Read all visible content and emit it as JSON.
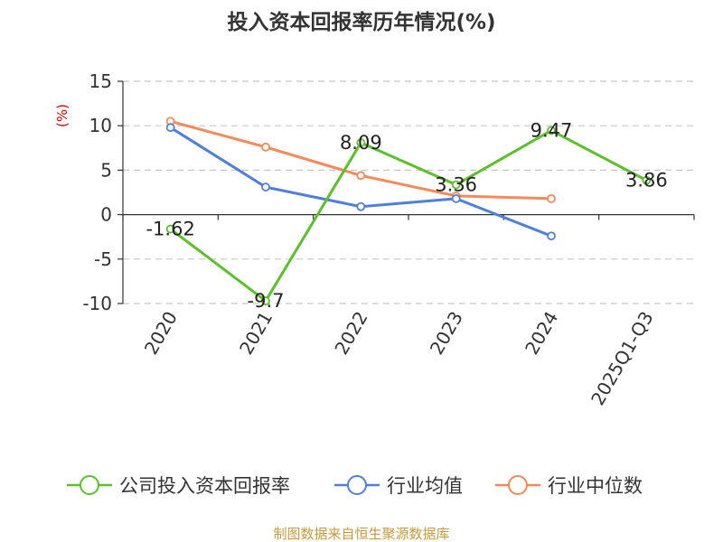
{
  "chart_data": {
    "type": "line",
    "title": "投入资本回报率历年情况(%)",
    "ylabel": "(%)",
    "categories": [
      "2020",
      "2021",
      "2022",
      "2023",
      "2024",
      "2025Q1-Q3"
    ],
    "ylim": [
      -10,
      15
    ],
    "yticks": [
      15,
      10,
      5,
      0,
      -5,
      -10
    ],
    "grid": true,
    "legend_position": "bottom",
    "series": [
      {
        "name": "公司投入资本回报率",
        "color": "#5cc02a",
        "values": [
          -1.62,
          -9.7,
          8.09,
          3.36,
          9.47,
          3.86
        ],
        "labels": [
          "-1.62",
          "-9.7",
          "8.09",
          "3.36",
          "9.47",
          "3.86"
        ]
      },
      {
        "name": "行业均值",
        "color": "#4f7fdb",
        "values": [
          9.8,
          3.1,
          0.9,
          1.8,
          -2.4,
          null
        ]
      },
      {
        "name": "行业中位数",
        "color": "#f5895a",
        "values": [
          10.5,
          7.6,
          4.4,
          2.1,
          1.8,
          null
        ]
      }
    ]
  },
  "source": "制图数据来自恒生聚源数据库"
}
